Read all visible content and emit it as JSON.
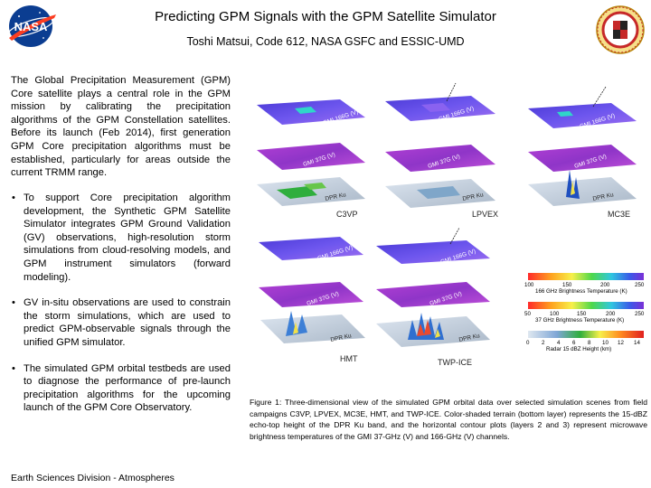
{
  "header": {
    "title": "Predicting GPM Signals with the GPM Satellite Simulator",
    "subtitle": "Toshi Matsui, Code 612, NASA GSFC and ESSIC-UMD",
    "left_logo_text": "NASA",
    "right_logo_icon": "university-seal-icon"
  },
  "intro": "The Global Precipitation Measurement (GPM) Core satellite plays a central role in the GPM mission by calibrating the precipitation algorithms of the GPM Constellation satellites. Before its launch (Feb 2014), first generation GPM Core precipitation algorithms must be established, particularly for areas outside the current TRMM range.",
  "bullets": [
    "To support Core precipitation algorithm development, the Synthetic GPM Satellite Simulator integrates GPM Ground Validation (GV) observations, high-resolution storm simulations from cloud-resolving models, and GPM instrument simulators (forward modeling).",
    "GV in-situ observations are used to constrain the storm simulations, which are used to predict GPM-observable signals through the unified GPM simulator.",
    "The simulated GPM orbital testbeds are used to diagnose the performance of pre-launch precipitation algorithms for the upcoming launch of the GPM Core Observatory."
  ],
  "footer": "Earth Sciences Division - Atmospheres",
  "figure": {
    "panels": [
      {
        "name": "C3VP",
        "layers": [
          "GMI 166G (V)",
          "GMI 37G (V)",
          "DPR Ku"
        ]
      },
      {
        "name": "LPVEX",
        "layers": [
          "GMI 166G (V)",
          "GMI 37G (V)",
          "DPR Ku"
        ]
      },
      {
        "name": "MC3E",
        "layers": [
          "GMI 166G (V)",
          "GMI 37G (V)",
          "DPR Ku"
        ]
      },
      {
        "name": "HMT",
        "layers": [
          "GMI 166G (V)",
          "GMI 37G (V)",
          "DPR Ku"
        ]
      },
      {
        "name": "TWP-ICE",
        "layers": [
          "GMI 166G (V)",
          "GMI 37G (V)",
          "DPR Ku"
        ]
      }
    ],
    "colorbars": [
      {
        "ticks": [
          "100",
          "150",
          "200",
          "250"
        ],
        "label": "166 GHz Brightness Temperature (K)"
      },
      {
        "ticks": [
          "50",
          "100",
          "150",
          "200",
          "250"
        ],
        "label": "37 GHz Brightness Temperature (K)"
      },
      {
        "ticks": [
          "0",
          "2",
          "4",
          "6",
          "8",
          "10",
          "12",
          "14"
        ],
        "label": "Radar 15 dBZ Height (km)"
      }
    ],
    "caption": "Figure 1: Three-dimensional view of the simulated GPM orbital data over selected simulation scenes from field campaigns C3VP, LPVEX, MC3E, HMT, and TWP-ICE. Color-shaded terrain (bottom layer) represents the 15-dBZ echo-top height of the DPR Ku band, and the horizontal contour plots (layers 2 and 3) represent microwave brightness temperatures of the GMI 37-GHz (V) and 166-GHz (V) channels."
  }
}
